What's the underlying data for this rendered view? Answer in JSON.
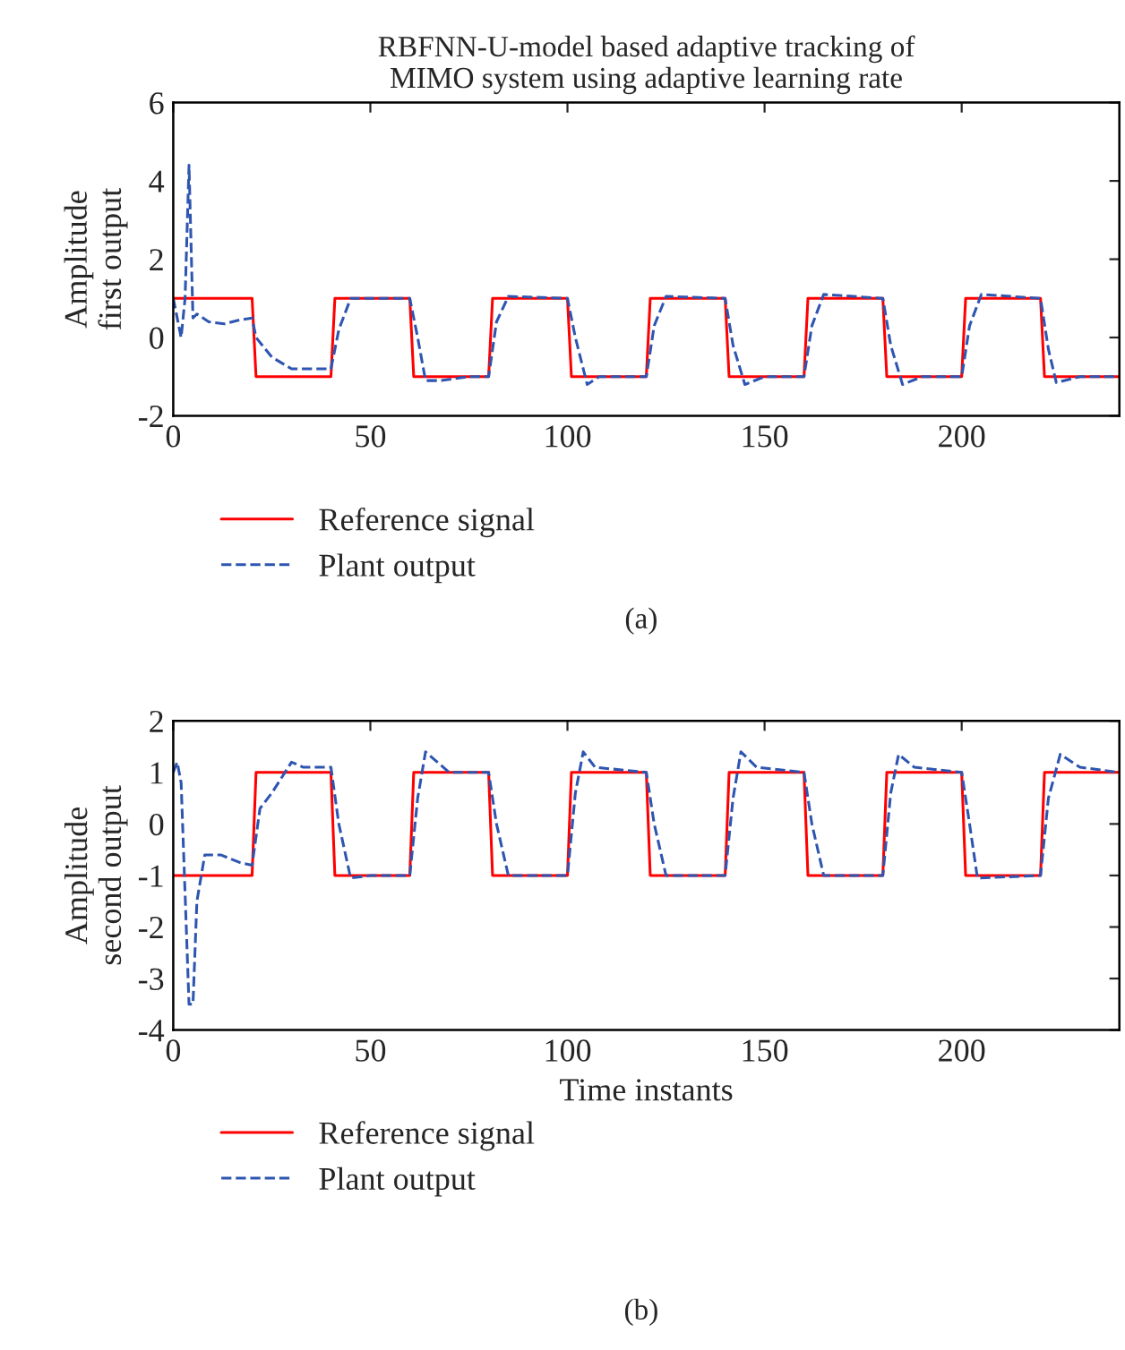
{
  "chart_data": [
    {
      "type": "line",
      "title": "RBFNN-U-model based adaptive tracking of\nMIMO system using adaptive learning rate",
      "ylabel": "Amplitude\nfirst output",
      "xlim": [
        0,
        240
      ],
      "xticks": [
        0,
        50,
        100,
        150,
        200
      ],
      "ylim": [
        -2,
        6
      ],
      "yticks": [
        -2,
        0,
        2,
        4,
        6
      ],
      "grid": false,
      "legend": "bottom",
      "annotations": [
        "(a)"
      ],
      "series": [
        {
          "name": "Reference signal",
          "color": "#ff0000",
          "line_style": "solid",
          "x": [
            0,
            20,
            21,
            40,
            41,
            60,
            61,
            80,
            81,
            100,
            101,
            120,
            121,
            140,
            141,
            160,
            161,
            180,
            181,
            200,
            201,
            220,
            221,
            240
          ],
          "values": [
            1,
            1,
            -1,
            -1,
            1,
            1,
            -1,
            -1,
            1,
            1,
            -1,
            -1,
            1,
            1,
            -1,
            -1,
            1,
            1,
            -1,
            -1,
            1,
            1,
            -1,
            -1
          ]
        },
        {
          "name": "Plant output",
          "color": "#2e55b0",
          "line_style": "dashed",
          "x": [
            0,
            1,
            2,
            3,
            4,
            5,
            6,
            9,
            13,
            17,
            20,
            21,
            25,
            30,
            35,
            40,
            42,
            45,
            50,
            60,
            62,
            64,
            68,
            75,
            80,
            82,
            85,
            100,
            102,
            105,
            108,
            120,
            122,
            125,
            140,
            142,
            145,
            150,
            160,
            162,
            165,
            180,
            182,
            185,
            190,
            200,
            202,
            205,
            220,
            222,
            224,
            230,
            240
          ],
          "values": [
            1,
            0.5,
            0,
            1,
            4.4,
            0.5,
            0.6,
            0.4,
            0.35,
            0.45,
            0.5,
            0,
            -0.5,
            -0.8,
            -0.8,
            -0.8,
            0.2,
            1,
            1,
            1,
            0,
            -1.1,
            -1.1,
            -1,
            -1,
            0.4,
            1.05,
            1,
            0,
            -1.2,
            -1,
            -1,
            0.3,
            1.05,
            1,
            -0.2,
            -1.2,
            -1,
            -1,
            0.3,
            1.1,
            1,
            -0.2,
            -1.2,
            -1,
            -1,
            0.3,
            1.1,
            1,
            -0.3,
            -1.15,
            -1,
            -1
          ]
        }
      ]
    },
    {
      "type": "line",
      "xlabel": "Time instants",
      "ylabel": "Amplitude\nsecond output",
      "xlim": [
        0,
        240
      ],
      "xticks": [
        0,
        50,
        100,
        150,
        200
      ],
      "ylim": [
        -4,
        2
      ],
      "yticks": [
        -4,
        -3,
        -2,
        -1,
        0,
        1,
        2
      ],
      "grid": false,
      "legend": "bottom",
      "annotations": [
        "(b)"
      ],
      "series": [
        {
          "name": "Reference signal",
          "color": "#ff0000",
          "line_style": "solid",
          "x": [
            0,
            20,
            21,
            40,
            41,
            60,
            61,
            80,
            81,
            100,
            101,
            120,
            121,
            140,
            141,
            160,
            161,
            180,
            181,
            200,
            201,
            220,
            221,
            240
          ],
          "values": [
            -1,
            -1,
            1,
            1,
            -1,
            -1,
            1,
            1,
            -1,
            -1,
            1,
            1,
            -1,
            -1,
            1,
            1,
            -1,
            -1,
            1,
            1,
            -1,
            -1,
            1,
            1
          ]
        },
        {
          "name": "Plant output",
          "color": "#2e55b0",
          "line_style": "dashed",
          "x": [
            0,
            1,
            2,
            4,
            5,
            6,
            8,
            12,
            17,
            20,
            22,
            25,
            30,
            33,
            40,
            42,
            45,
            50,
            60,
            62,
            64,
            67,
            70,
            80,
            82,
            85,
            100,
            102,
            104,
            107,
            120,
            122,
            125,
            140,
            142,
            144,
            148,
            160,
            162,
            165,
            180,
            182,
            184,
            188,
            200,
            202,
            204,
            220,
            222,
            225,
            230,
            240
          ],
          "values": [
            1,
            1.2,
            0.8,
            -3.5,
            -3.5,
            -1.5,
            -0.6,
            -0.6,
            -0.75,
            -0.8,
            0.3,
            0.6,
            1.2,
            1.1,
            1.1,
            0,
            -1.05,
            -1,
            -1,
            0.5,
            1.4,
            1.2,
            1,
            1,
            0,
            -1,
            -1,
            0.6,
            1.4,
            1.1,
            1,
            0,
            -1,
            -1,
            0.5,
            1.4,
            1.1,
            1,
            0,
            -1,
            -1,
            0.6,
            1.35,
            1.1,
            1,
            0,
            -1.05,
            -1,
            0.5,
            1.35,
            1.1,
            1
          ]
        }
      ]
    }
  ]
}
